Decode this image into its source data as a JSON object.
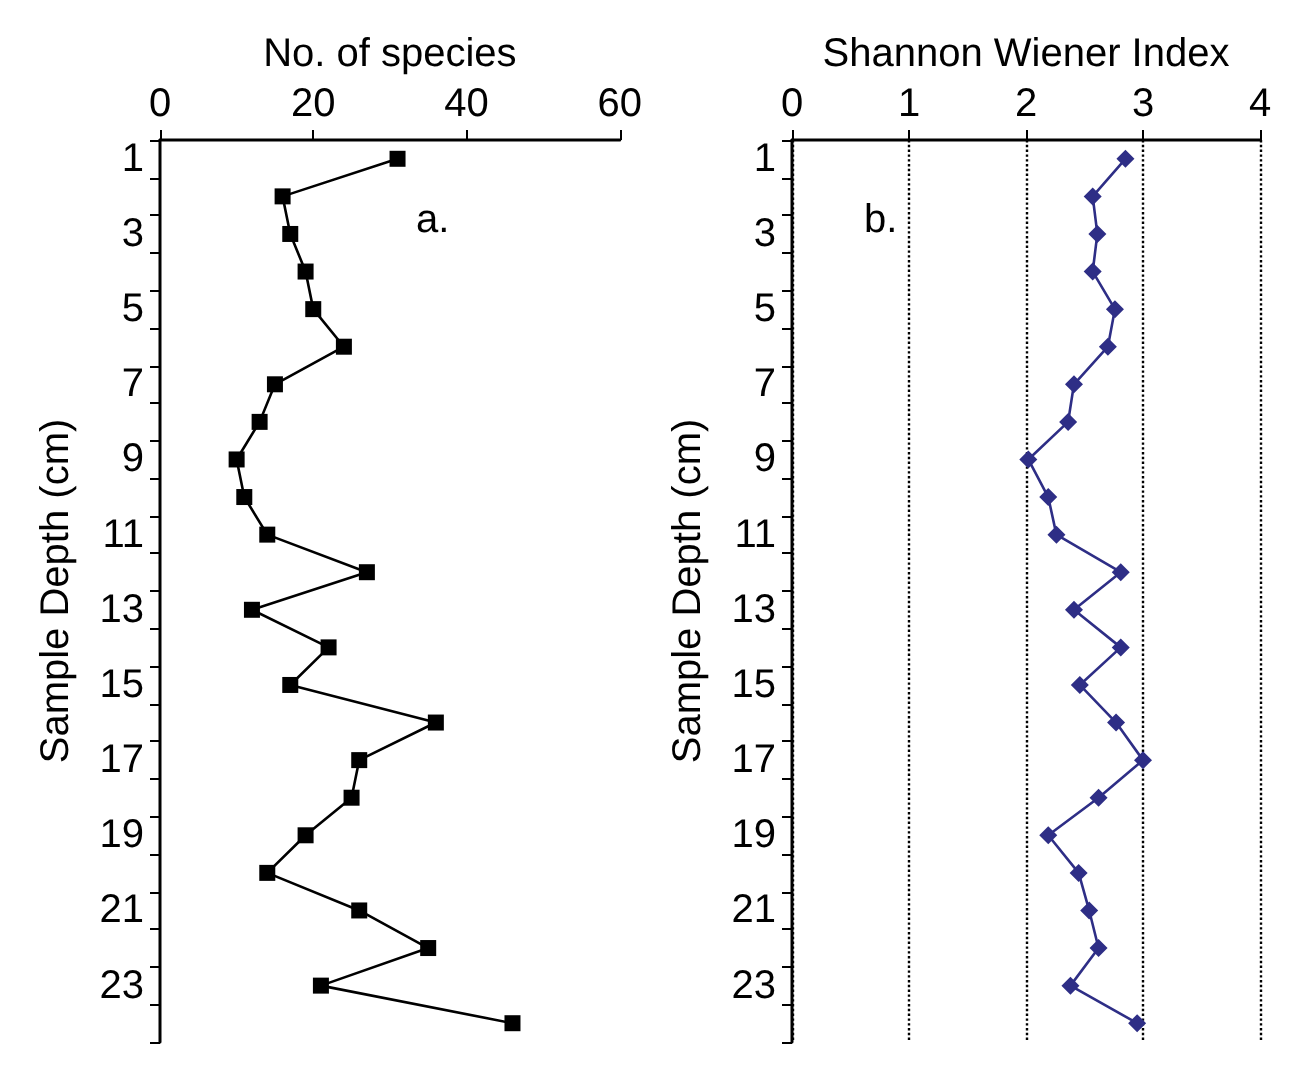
{
  "chart_data": [
    {
      "type": "line",
      "xlabel": "No. of species",
      "ylabel": "Sample Depth (cm)",
      "orientation": "horizontal",
      "categories": [
        "1",
        null,
        "3",
        null,
        "5",
        null,
        "7",
        null,
        "9",
        null,
        "11",
        null,
        "13",
        null,
        "15",
        null,
        "17",
        null,
        "19",
        null,
        "21",
        null,
        "23",
        null
      ],
      "series": [
        {
          "color": "#000000",
          "values": [
            31,
            16,
            17,
            19,
            20,
            24,
            15,
            13,
            10,
            11,
            14,
            27,
            12,
            22,
            17,
            36,
            26,
            25,
            19,
            14,
            26,
            35,
            21,
            46
          ]
        }
      ],
      "xlim": [
        0,
        60
      ],
      "xticks": [
        0,
        20,
        40,
        60
      ],
      "grid": false,
      "marker": "square",
      "line_style": "solid",
      "annotations": [
        "a."
      ]
    },
    {
      "type": "line",
      "xlabel": "Shannon Wiener Index",
      "ylabel": "Sample Depth (cm)",
      "orientation": "horizontal",
      "categories": [
        "1",
        null,
        "3",
        null,
        "5",
        null,
        "7",
        null,
        "9",
        null,
        "11",
        null,
        "13",
        null,
        "15",
        null,
        "17",
        null,
        "19",
        null,
        "21",
        null,
        "23",
        null
      ],
      "series": [
        {
          "color": "#2e2e86",
          "values": [
            2.85,
            2.57,
            2.61,
            2.57,
            2.76,
            2.7,
            2.41,
            2.36,
            2.02,
            2.19,
            2.26,
            2.81,
            2.41,
            2.81,
            2.46,
            2.77,
            3.0,
            2.62,
            2.19,
            2.45,
            2.54,
            2.62,
            2.38,
            2.95
          ]
        }
      ],
      "xlim": [
        0,
        4
      ],
      "xticks": [
        0,
        1,
        2,
        3,
        4
      ],
      "grid": "x",
      "marker": "diamond",
      "line_style": "solid",
      "annotations": [
        "b."
      ]
    }
  ]
}
